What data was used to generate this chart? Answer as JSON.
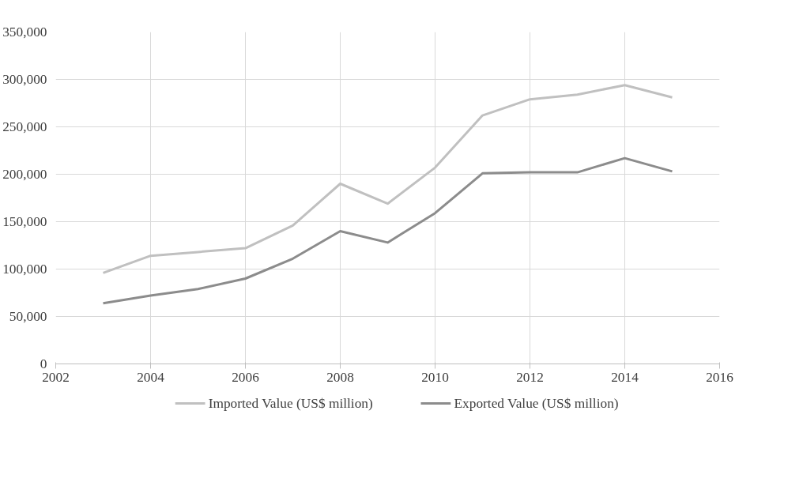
{
  "chart_data": {
    "type": "line",
    "x": [
      2003,
      2004,
      2005,
      2006,
      2007,
      2008,
      2009,
      2010,
      2011,
      2012,
      2013,
      2014,
      2015
    ],
    "series": [
      {
        "name": "Imported Value (US$ million)",
        "color": "#c0c0c0",
        "values": [
          96000,
          114000,
          118000,
          122000,
          146000,
          190000,
          169000,
          207000,
          262000,
          279000,
          284000,
          294000,
          281000
        ]
      },
      {
        "name": "Exported Value (US$ million)",
        "color": "#8c8c8c",
        "values": [
          64000,
          72000,
          79000,
          90000,
          111000,
          140000,
          128000,
          159000,
          201000,
          202000,
          202000,
          217000,
          203000
        ]
      }
    ],
    "xlim": [
      2002,
      2016
    ],
    "xticks": [
      2002,
      2004,
      2006,
      2008,
      2010,
      2012,
      2014,
      2016
    ],
    "ylim": [
      0,
      350000
    ],
    "yticks": [
      {
        "value": 0,
        "label": "0"
      },
      {
        "value": 50000,
        "label": "50,000"
      },
      {
        "value": 100000,
        "label": "100,000"
      },
      {
        "value": 150000,
        "label": "150,000"
      },
      {
        "value": 200000,
        "label": "200,000"
      },
      {
        "value": 250000,
        "label": "250,000"
      },
      {
        "value": 300000,
        "label": "300,000"
      },
      {
        "value": 350000,
        "label": "350,000"
      }
    ],
    "grid": true,
    "legend": "bottom",
    "marker": "none",
    "line_style": "solid"
  }
}
